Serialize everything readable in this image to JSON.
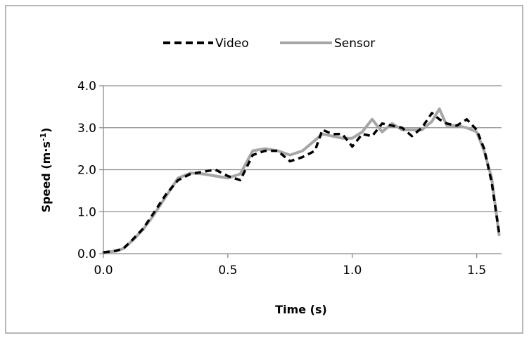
{
  "chart_data": {
    "type": "line",
    "xlabel": "Time (s)",
    "ylabel": "Speed (m·s",
    "ylabel_sup": "-1",
    "ylabel_close": ")",
    "xlim": [
      0,
      1.6
    ],
    "ylim": [
      0,
      4
    ],
    "xticks": [
      "0.0",
      "0.5",
      "1.0",
      "1.5"
    ],
    "yticks": [
      "0.0",
      "1.0",
      "2.0",
      "3.0",
      "4.0"
    ],
    "grid": "horizontal",
    "legend_position": "top",
    "series": [
      {
        "name": "Video",
        "style": "dashed",
        "color": "#000000",
        "x": [
          0,
          0.05,
          0.08,
          0.12,
          0.16,
          0.2,
          0.25,
          0.3,
          0.35,
          0.4,
          0.45,
          0.5,
          0.55,
          0.6,
          0.65,
          0.7,
          0.75,
          0.8,
          0.85,
          0.88,
          0.92,
          0.96,
          1.0,
          1.04,
          1.08,
          1.12,
          1.16,
          1.2,
          1.24,
          1.28,
          1.32,
          1.35,
          1.38,
          1.42,
          1.46,
          1.5,
          1.53,
          1.56,
          1.59
        ],
        "y": [
          0.03,
          0.07,
          0.12,
          0.35,
          0.6,
          0.95,
          1.4,
          1.75,
          1.9,
          1.95,
          2.0,
          1.85,
          1.75,
          2.35,
          2.45,
          2.45,
          2.2,
          2.3,
          2.45,
          2.95,
          2.85,
          2.85,
          2.55,
          2.85,
          2.8,
          3.1,
          3.05,
          3.0,
          2.8,
          3.0,
          3.35,
          3.2,
          3.1,
          3.05,
          3.2,
          2.95,
          2.5,
          1.7,
          0.5
        ]
      },
      {
        "name": "Sensor",
        "style": "solid",
        "color": "#a6a6a6",
        "x": [
          0,
          0.05,
          0.08,
          0.12,
          0.16,
          0.2,
          0.25,
          0.3,
          0.35,
          0.4,
          0.45,
          0.5,
          0.55,
          0.6,
          0.65,
          0.7,
          0.75,
          0.8,
          0.85,
          0.88,
          0.92,
          0.96,
          1.0,
          1.04,
          1.08,
          1.12,
          1.16,
          1.2,
          1.24,
          1.28,
          1.32,
          1.35,
          1.38,
          1.42,
          1.46,
          1.5,
          1.53,
          1.56,
          1.59
        ],
        "y": [
          0.03,
          0.06,
          0.12,
          0.33,
          0.58,
          0.9,
          1.35,
          1.8,
          1.92,
          1.9,
          1.85,
          1.8,
          1.9,
          2.45,
          2.5,
          2.45,
          2.35,
          2.45,
          2.7,
          2.85,
          2.8,
          2.75,
          2.75,
          2.9,
          3.2,
          2.9,
          3.1,
          2.95,
          2.95,
          2.95,
          3.15,
          3.45,
          3.05,
          3.05,
          3.0,
          2.9,
          2.45,
          1.8,
          0.45
        ]
      }
    ]
  }
}
